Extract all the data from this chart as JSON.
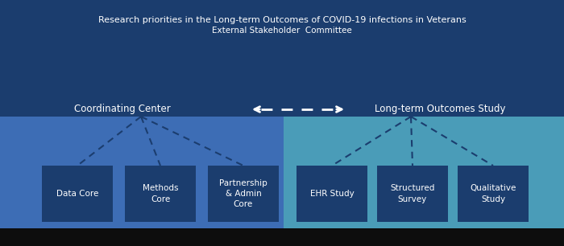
{
  "bg_dark_blue": "#1b3d6e",
  "bg_medium_blue": "#3d6db5",
  "bg_teal": "#4a9cb8",
  "box_dark": "#1b3d6e",
  "text_white": "#ffffff",
  "title_line1": "Research priorities in the Long-term Outcomes of COVID-19 infections in Veterans",
  "title_line2": "External Stakeholder  Committee",
  "coord_label": "Coordinating Center",
  "outcomes_label": "Long-term Outcomes Study",
  "left_boxes": [
    "Data Core",
    "Methods\nCore",
    "Partnership\n& Admin\nCore"
  ],
  "right_boxes": [
    "EHR Study",
    "Structured\nSurvey",
    "Qualitative\nStudy"
  ],
  "bottom_bar_color": "#0d0d0d",
  "fig_width": 7.0,
  "fig_height": 3.06,
  "dpi": 100
}
